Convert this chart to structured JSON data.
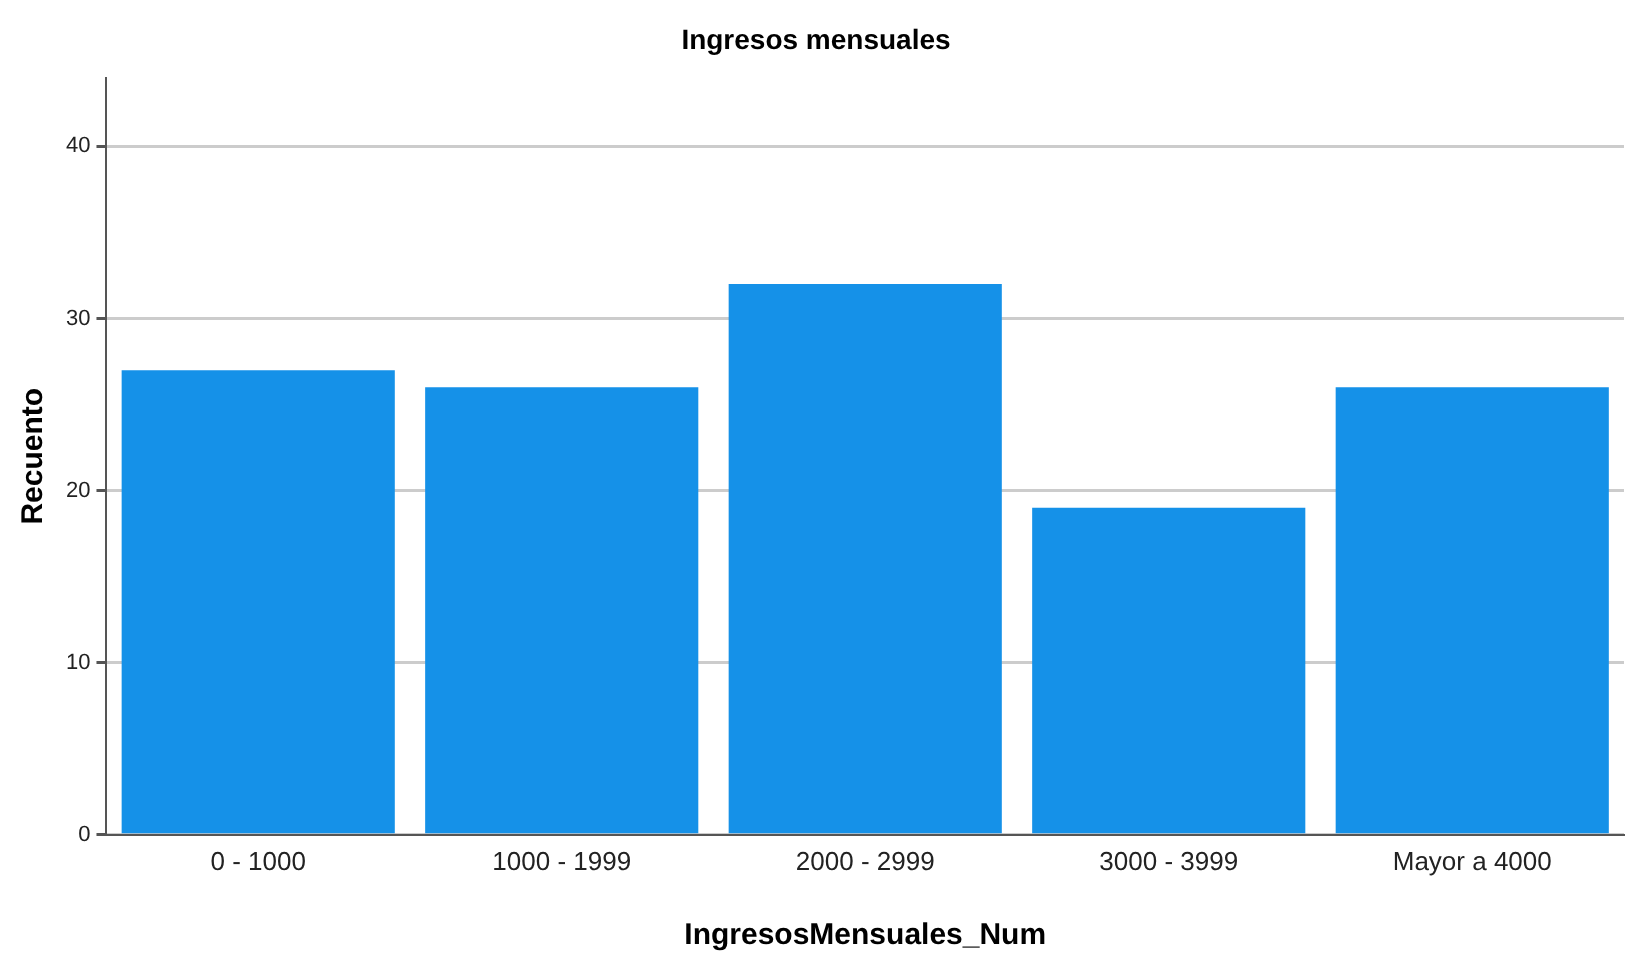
{
  "chart_data": {
    "type": "bar",
    "title": "Ingresos mensuales",
    "xlabel": "IngresosMensuales_Num",
    "ylabel": "Recuento",
    "categories": [
      "0 - 1000",
      "1000 - 1999",
      "2000 - 2999",
      "3000 - 3999",
      "Mayor a 4000"
    ],
    "values": [
      27,
      26,
      32,
      19,
      26
    ],
    "color": "#1591e8",
    "ylim": [
      0,
      44
    ],
    "yticks": [
      0,
      10,
      20,
      30,
      40
    ],
    "grid": "y"
  }
}
